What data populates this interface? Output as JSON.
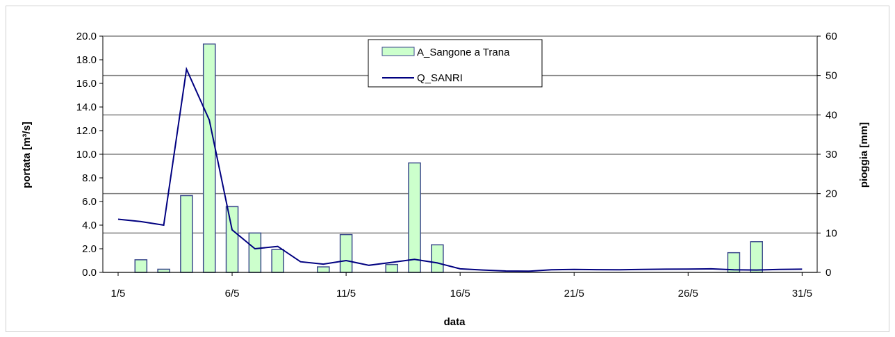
{
  "chart_data": {
    "type": "bar+line",
    "xlabel": "data",
    "ylabel_left": "portata [m³/s]",
    "ylabel_right": "pioggia [mm]",
    "ylim_left": [
      0,
      20
    ],
    "ylim_right": [
      0,
      60
    ],
    "x_ticks": [
      "1/5",
      "6/5",
      "11/5",
      "16/5",
      "21/5",
      "26/5",
      "31/5"
    ],
    "left_ticks": [
      "0.0",
      "2.0",
      "4.0",
      "6.0",
      "8.0",
      "10.0",
      "12.0",
      "14.0",
      "16.0",
      "18.0",
      "20.0"
    ],
    "right_ticks": [
      "0",
      "10",
      "20",
      "30",
      "40",
      "50",
      "60"
    ],
    "grid": true,
    "legend_position": "top-center",
    "days": [
      1,
      2,
      3,
      4,
      5,
      6,
      7,
      8,
      9,
      10,
      11,
      12,
      13,
      14,
      15,
      16,
      17,
      18,
      19,
      20,
      21,
      22,
      23,
      24,
      25,
      26,
      27,
      28,
      29,
      30,
      31
    ],
    "series": [
      {
        "name": "A_Sangone a Trana",
        "kind": "bar",
        "axis": "right",
        "color": "#ccffcc",
        "edge": "#3c4a8c",
        "values": [
          0,
          3.2,
          0.8,
          19.5,
          58.0,
          16.7,
          10.0,
          5.8,
          0,
          1.4,
          9.6,
          0,
          2.0,
          27.8,
          7.0,
          0,
          0,
          0,
          0,
          0,
          0,
          0,
          0,
          0,
          0,
          0,
          0,
          5.0,
          7.8,
          0,
          0
        ]
      },
      {
        "name": "Q_SANRI",
        "kind": "line",
        "axis": "left",
        "color": "#000080",
        "values": [
          4.5,
          4.3,
          4.0,
          17.2,
          12.9,
          3.6,
          2.0,
          2.2,
          0.9,
          0.7,
          1.0,
          0.6,
          0.85,
          1.1,
          0.8,
          0.3,
          0.2,
          0.12,
          0.1,
          0.22,
          0.25,
          0.23,
          0.22,
          0.25,
          0.27,
          0.28,
          0.3,
          0.22,
          0.2,
          0.25,
          0.27
        ]
      }
    ]
  }
}
